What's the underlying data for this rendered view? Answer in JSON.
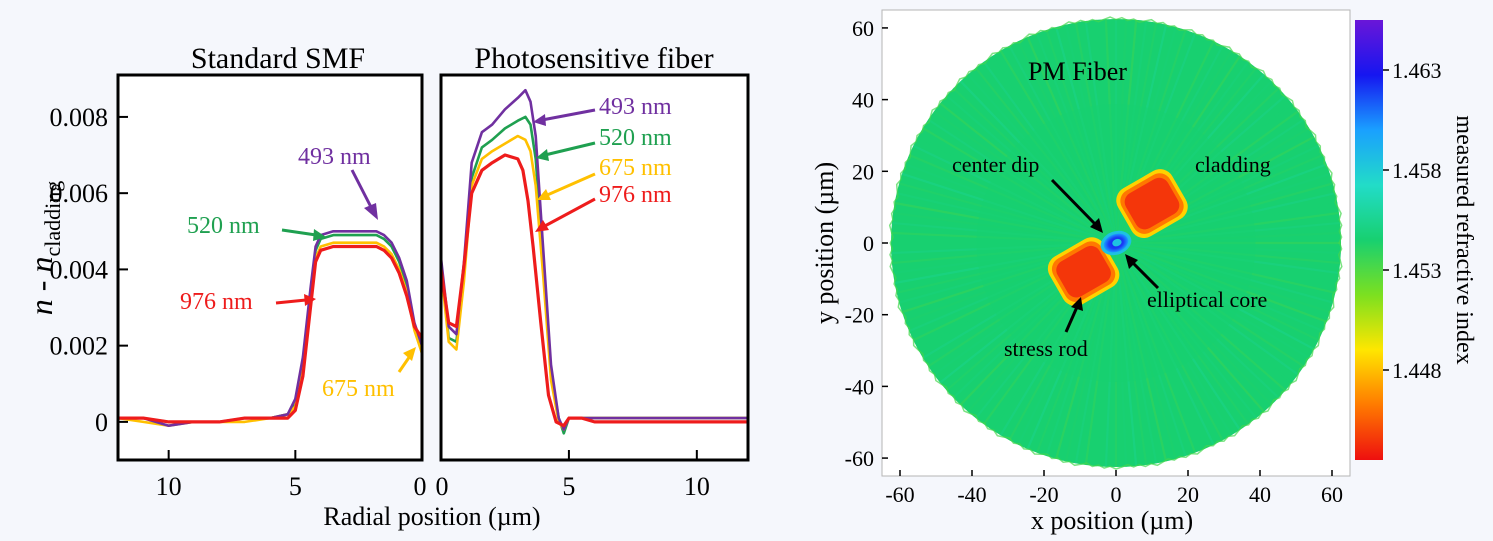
{
  "chart_data": [
    {
      "type": "line",
      "panel": "left",
      "ylabel_main": "n - n",
      "ylabel_sub": "cladding",
      "xlabel": "Radial position (µm)",
      "ylim": [
        -0.001,
        0.0091
      ],
      "yticks": [
        0,
        0.002,
        0.004,
        0.006,
        0.008
      ],
      "ytick_labels": [
        "0",
        "0.002",
        "0.004",
        "0.006",
        "0.008"
      ],
      "colors": {
        "493 nm": "#7030a0",
        "520 nm": "#1fa050",
        "675 nm": "#ffc000",
        "976 nm": "#ee1c1c"
      },
      "subplots": [
        {
          "title": "Standard SMF",
          "xlim": [
            12,
            0
          ],
          "xticks": [
            10,
            5,
            0
          ],
          "xtick_labels": [
            "10",
            "5",
            "0"
          ],
          "series": [
            {
              "name": "493 nm",
              "x": [
                12,
                11,
                10,
                9,
                8,
                7,
                6,
                5.3,
                5.0,
                4.7,
                4.4,
                4.2,
                4.0,
                3.5,
                2.5,
                1.8,
                1.5,
                1.2,
                0.9,
                0.6,
                0.3,
                0
              ],
              "y": [
                0.0001,
                0.0001,
                -0.0001,
                0.0,
                0.0,
                0.0001,
                0.0001,
                0.0002,
                0.0006,
                0.0017,
                0.0035,
                0.0046,
                0.0049,
                0.005,
                0.005,
                0.005,
                0.0049,
                0.0047,
                0.0043,
                0.0037,
                0.0026,
                0.002
              ]
            },
            {
              "name": "520 nm",
              "x": [
                12,
                11,
                10,
                9,
                8,
                7,
                6,
                5.3,
                5.0,
                4.7,
                4.4,
                4.2,
                4.0,
                3.5,
                2.5,
                1.8,
                1.5,
                1.2,
                0.9,
                0.6,
                0.3,
                0
              ],
              "y": [
                0.0001,
                0.0001,
                0.0,
                0.0,
                0.0,
                0.0001,
                0.0001,
                0.0002,
                0.0005,
                0.0016,
                0.0034,
                0.0045,
                0.0048,
                0.0049,
                0.0049,
                0.0049,
                0.0048,
                0.0046,
                0.0042,
                0.0036,
                0.0025,
                0.0018
              ]
            },
            {
              "name": "675 nm",
              "x": [
                12,
                11,
                10,
                9,
                8,
                7,
                6,
                5.3,
                5.0,
                4.7,
                4.4,
                4.2,
                4.0,
                3.5,
                2.5,
                1.8,
                1.5,
                1.2,
                0.9,
                0.6,
                0.3,
                0
              ],
              "y": [
                0.0001,
                0.0,
                -0.0001,
                0.0,
                0.0,
                0.0,
                0.0001,
                0.0002,
                0.0004,
                0.0014,
                0.0032,
                0.0043,
                0.0046,
                0.0047,
                0.0047,
                0.0047,
                0.0046,
                0.0044,
                0.004,
                0.0034,
                0.0024,
                0.0018
              ]
            },
            {
              "name": "976 nm",
              "x": [
                12,
                11,
                10,
                9,
                8,
                7,
                6,
                5.3,
                5.0,
                4.7,
                4.4,
                4.2,
                4.0,
                3.5,
                2.5,
                1.8,
                1.5,
                1.2,
                0.9,
                0.6,
                0.3,
                0
              ],
              "y": [
                0.0001,
                0.0001,
                0.0,
                0.0,
                0.0,
                0.0001,
                0.0001,
                0.0001,
                0.0003,
                0.0012,
                0.003,
                0.0042,
                0.0045,
                0.0046,
                0.0046,
                0.0046,
                0.0045,
                0.0043,
                0.0039,
                0.0033,
                0.0025,
                0.0022
              ]
            }
          ],
          "annotations": [
            {
              "text": "493 nm",
              "color": "#7030a0"
            },
            {
              "text": "520 nm",
              "color": "#1fa050"
            },
            {
              "text": "976 nm",
              "color": "#ee1c1c"
            },
            {
              "text": "675 nm",
              "color": "#ffc000"
            }
          ]
        },
        {
          "title": "Photosensitive fiber",
          "xlim": [
            0,
            12
          ],
          "xticks": [
            0,
            5,
            10
          ],
          "xtick_labels": [
            "0",
            "5",
            "10"
          ],
          "series": [
            {
              "name": "493 nm",
              "x": [
                0,
                0.3,
                0.6,
                0.9,
                1.2,
                1.6,
                2.0,
                2.5,
                3.0,
                3.3,
                3.5,
                3.7,
                4.0,
                4.3,
                4.6,
                4.8,
                5.0,
                5.5,
                6,
                8,
                10,
                12
              ],
              "y": [
                0.0043,
                0.0025,
                0.0023,
                0.0042,
                0.0068,
                0.0076,
                0.0078,
                0.0082,
                0.0085,
                0.0087,
                0.0084,
                0.0075,
                0.0045,
                0.0015,
                0.0001,
                -0.0002,
                0.0001,
                0.0001,
                0.0001,
                0.0001,
                0.0001,
                0.0001
              ]
            },
            {
              "name": "520 nm",
              "x": [
                0,
                0.3,
                0.6,
                0.9,
                1.2,
                1.6,
                2.0,
                2.5,
                3.0,
                3.3,
                3.5,
                3.7,
                4.0,
                4.3,
                4.6,
                4.8,
                5.0,
                5.5,
                6,
                8,
                10,
                12
              ],
              "y": [
                0.0041,
                0.0022,
                0.0021,
                0.0039,
                0.0064,
                0.0072,
                0.0074,
                0.0077,
                0.0079,
                0.008,
                0.0078,
                0.0069,
                0.0042,
                0.0013,
                0.0001,
                -0.0003,
                0.0001,
                0.0001,
                0.0001,
                0.0001,
                0.0001,
                0.0001
              ]
            },
            {
              "name": "675 nm",
              "x": [
                0,
                0.3,
                0.6,
                0.9,
                1.2,
                1.6,
                2.0,
                2.5,
                3.0,
                3.3,
                3.5,
                3.7,
                4.0,
                4.3,
                4.6,
                4.8,
                5.0,
                5.5,
                6,
                8,
                10,
                12
              ],
              "y": [
                0.004,
                0.0021,
                0.0019,
                0.0037,
                0.0062,
                0.0069,
                0.0071,
                0.0073,
                0.0075,
                0.0074,
                0.0071,
                0.0062,
                0.0038,
                0.0011,
                0.0,
                -0.0002,
                0.0001,
                0.0001,
                0.0001,
                0.0001,
                0.0001,
                0.0001
              ]
            },
            {
              "name": "976 nm",
              "x": [
                0,
                0.3,
                0.6,
                0.9,
                1.2,
                1.6,
                2.0,
                2.5,
                3.0,
                3.2,
                3.4,
                3.6,
                3.9,
                4.2,
                4.5,
                4.8,
                5.0,
                5.5,
                6,
                8,
                10,
                12
              ],
              "y": [
                0.004,
                0.0026,
                0.0025,
                0.0041,
                0.006,
                0.0066,
                0.0068,
                0.007,
                0.0069,
                0.0066,
                0.0058,
                0.0046,
                0.0026,
                0.0007,
                0.0,
                -0.0001,
                0.0001,
                0.0001,
                0.0,
                0.0,
                0.0,
                0.0
              ]
            }
          ],
          "annotations": [
            {
              "text": "493 nm",
              "color": "#7030a0"
            },
            {
              "text": "520 nm",
              "color": "#1fa050"
            },
            {
              "text": "675 nm",
              "color": "#ffc000"
            },
            {
              "text": "976 nm",
              "color": "#ee1c1c"
            }
          ]
        }
      ]
    },
    {
      "type": "heatmap",
      "panel": "right",
      "title": "PM Fiber",
      "xlabel": "x position (µm)",
      "ylabel": "y position (µm)",
      "xlim": [
        -65,
        65
      ],
      "ylim": [
        -65,
        65
      ],
      "xticks": [
        -60,
        -40,
        -20,
        0,
        20,
        40,
        60
      ],
      "xtick_labels": [
        "-60",
        "-40",
        "-20",
        "0",
        "20",
        "40",
        "60"
      ],
      "yticks": [
        60,
        40,
        20,
        0,
        -20,
        -40,
        -60
      ],
      "ytick_labels": [
        "60",
        "40",
        "20",
        "0",
        "-20",
        "-40",
        "-60"
      ],
      "fiber_radius": 62.5,
      "cladding_index": 1.4545,
      "colorbar": {
        "label": "measured refractive index",
        "range": [
          1.4435,
          1.4655
        ],
        "ticks": [
          1.463,
          1.458,
          1.453,
          1.448
        ],
        "tick_labels": [
          "1.463",
          "1.458",
          "1.453",
          "1.448"
        ],
        "colors": [
          "#ee0f0f",
          "#ff7a00",
          "#ffe600",
          "#7ce020",
          "#18d070",
          "#22dcc8",
          "#1aa0ff",
          "#1616f0",
          "#6a16d8"
        ]
      },
      "regions": [
        {
          "name": "core",
          "x": 0,
          "y": 0,
          "rx": 3.5,
          "ry": 2.5,
          "index": 1.463
        },
        {
          "name": "stress rod upper",
          "x": 10,
          "y": 11,
          "size": 14,
          "index": 1.4445
        },
        {
          "name": "stress rod lower",
          "x": -9,
          "y": -8,
          "size": 14,
          "index": 1.4445
        }
      ],
      "annotations": [
        {
          "text": "center dip"
        },
        {
          "text": "cladding"
        },
        {
          "text": "elliptical core"
        },
        {
          "text": "stress rod"
        }
      ]
    }
  ]
}
